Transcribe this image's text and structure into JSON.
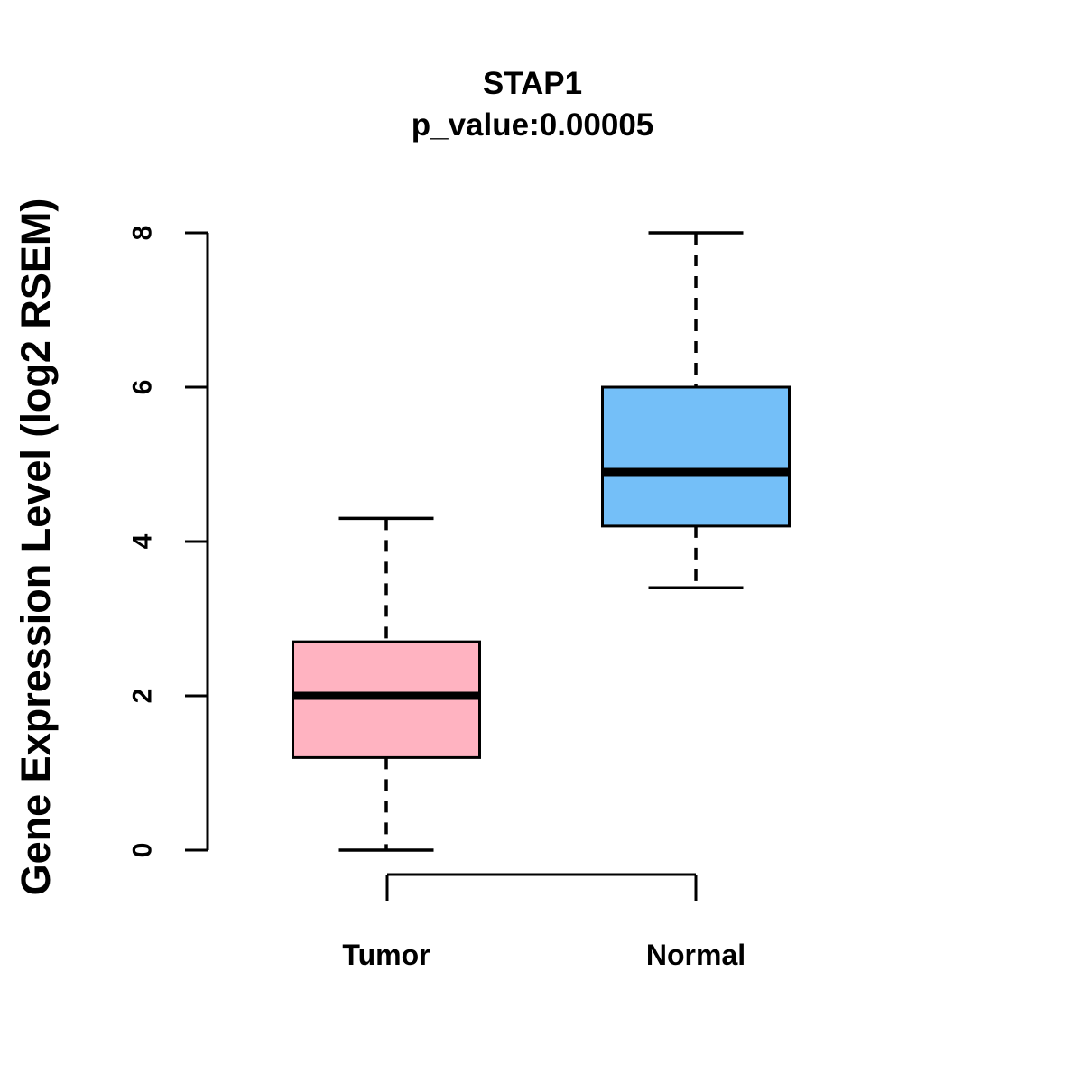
{
  "chart_data": {
    "type": "boxplot",
    "title": "STAP1",
    "subtitle": "p_value:0.00005",
    "ylabel": "Gene Expression Level (log2 RSEM)",
    "xlabel": "",
    "ylim": [
      0,
      8
    ],
    "yticks": [
      0,
      2,
      4,
      6,
      8
    ],
    "grid": false,
    "legend": false,
    "categories": [
      "Tumor",
      "Normal"
    ],
    "series": [
      {
        "name": "Tumor",
        "box_color": "#FFB3C1",
        "border_color": "#000000",
        "median_color": "#000000",
        "whisker_low": 0.0,
        "q1": 1.2,
        "median": 2.0,
        "q3": 2.7,
        "whisker_high": 4.3
      },
      {
        "name": "Normal",
        "box_color": "#74BFF8",
        "border_color": "#000000",
        "median_color": "#000000",
        "whisker_low": 3.4,
        "q1": 4.2,
        "median": 4.9,
        "q3": 6.0,
        "whisker_high": 8.0
      }
    ]
  }
}
